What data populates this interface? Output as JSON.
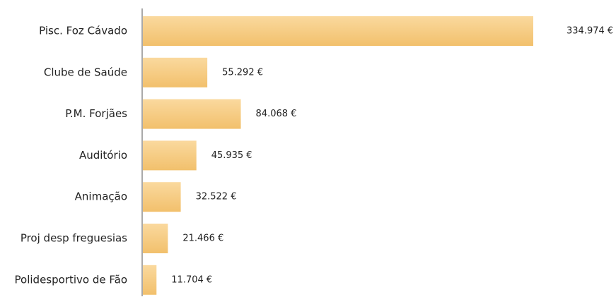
{
  "chart_data": {
    "type": "bar",
    "orientation": "horizontal",
    "categories": [
      "Pisc. Foz Cávado",
      "Clube de Saúde",
      "P.M. Forjães",
      "Auditório",
      "Animação",
      "Proj desp freguesias",
      "Polidesportivo de Fão"
    ],
    "values": [
      334974,
      55292,
      84068,
      45935,
      32522,
      21466,
      11704
    ],
    "value_labels": [
      "334.974 €",
      "55.292 €",
      "84.068 €",
      "45.935 €",
      "32.522 €",
      "21.466 €",
      "11.704 €"
    ],
    "color": "#f7cd85"
  }
}
